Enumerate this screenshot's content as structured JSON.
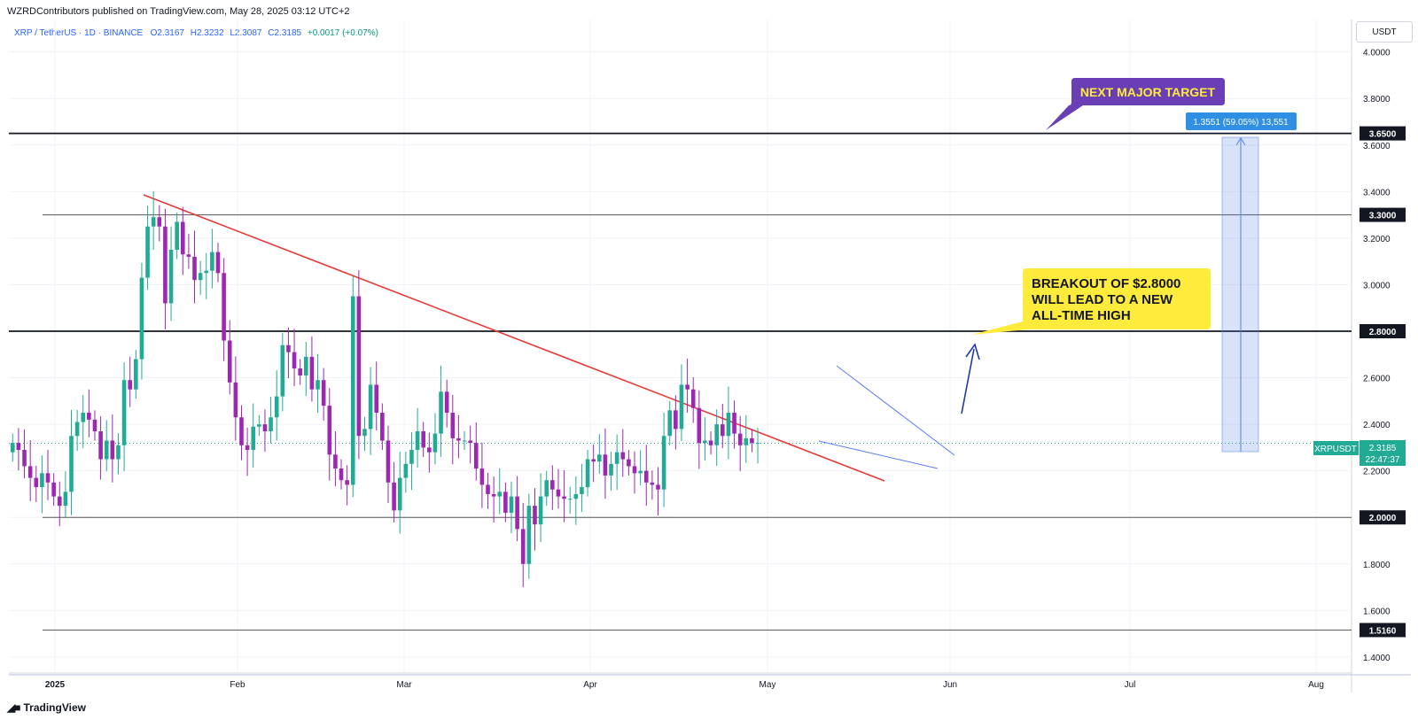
{
  "header": {
    "publisher": "WZRDContributors published on TradingView.com, May 28, 2025 03:12 UTC+2",
    "symbol": "XRP / TetherUS · 1D · BINANCE",
    "open": "O2.3167",
    "high": "H2.3232",
    "low": "L2.3087",
    "close": "C2.3185",
    "change": "+0.0017 (+0.07%)",
    "currency": "USDT"
  },
  "footer": {
    "brand": "TradingView"
  },
  "annotations": {
    "next_target": "NEXT MAJOR TARGET",
    "breakout_line1": "BREAKOUT OF $2.8000",
    "breakout_line2": "WILL LEAD TO A NEW",
    "breakout_line3": "ALL-TIME HIGH",
    "measure_label": "1.3551 (59.05%) 13,551",
    "ticker_tag": "XRPUSDT",
    "price_tag": "2.3185",
    "countdown": "22:47:37"
  },
  "colors": {
    "up": "#22ab94",
    "down": "#9c27b0",
    "trendline": "#e53935",
    "wedge": "#5b7cf0",
    "target_box": "#6a3fb5",
    "callout": "#ffeb3b",
    "measure": "#4d7fe8"
  },
  "chart_data": {
    "type": "candlestick",
    "y_axis": {
      "range": [
        1.35,
        4.1
      ],
      "ticks": [
        "4.0000",
        "3.8000",
        "3.6000",
        "3.4000",
        "3.2000",
        "3.0000",
        "2.8000",
        "2.6000",
        "2.4000",
        "2.2000",
        "2.0000",
        "1.8000",
        "1.6000",
        "1.4000"
      ]
    },
    "x_axis": {
      "ticks": [
        "2025",
        "Feb",
        "Mar",
        "Apr",
        "May",
        "Jun",
        "Jul",
        "Aug"
      ]
    },
    "levels": [
      {
        "price": 3.65,
        "label": "3.6500",
        "weight": "heavy"
      },
      {
        "price": 3.3,
        "label": "3.3000",
        "weight": "light"
      },
      {
        "price": 2.8,
        "label": "2.8000",
        "weight": "heavy"
      },
      {
        "price": 2.0,
        "label": "2.0000",
        "weight": "light"
      },
      {
        "price": 1.516,
        "label": "1.5160",
        "weight": "light"
      }
    ],
    "closes": [
      2.32,
      2.29,
      2.22,
      2.17,
      2.13,
      2.19,
      2.15,
      2.09,
      2.05,
      2.11,
      2.35,
      2.41,
      2.45,
      2.42,
      2.37,
      2.25,
      2.33,
      2.25,
      2.31,
      2.59,
      2.55,
      2.68,
      3.03,
      3.25,
      3.29,
      3.25,
      2.92,
      3.15,
      3.27,
      3.13,
      3.12,
      3.02,
      3.05,
      3.06,
      3.14,
      3.05,
      2.76,
      2.58,
      2.43,
      2.31,
      2.29,
      2.39,
      2.4,
      2.37,
      2.43,
      2.52,
      2.74,
      2.71,
      2.64,
      2.61,
      2.69,
      2.55,
      2.59,
      2.48,
      2.27,
      2.21,
      2.16,
      2.14,
      2.95,
      2.35,
      2.38,
      2.57,
      2.45,
      2.33,
      2.15,
      2.03,
      2.17,
      2.23,
      2.29,
      2.37,
      2.3,
      2.28,
      2.36,
      2.54,
      2.45,
      2.34,
      2.33,
      2.33,
      2.32,
      2.21,
      2.14,
      2.1,
      2.09,
      2.11,
      2.02,
      2.09,
      1.95,
      1.8,
      2.05,
      1.97,
      2.09,
      2.16,
      2.12,
      2.09,
      2.08,
      2.08,
      2.1,
      2.13,
      2.25,
      2.24,
      2.27,
      2.18,
      2.23,
      2.28,
      2.25,
      2.22,
      2.19,
      2.2,
      2.15,
      2.14,
      2.12,
      2.35,
      2.46,
      2.38,
      2.57,
      2.55,
      2.47,
      2.32,
      2.33,
      2.31,
      2.4,
      2.35,
      2.45,
      2.36,
      2.31,
      2.34,
      2.32,
      2.32
    ]
  }
}
